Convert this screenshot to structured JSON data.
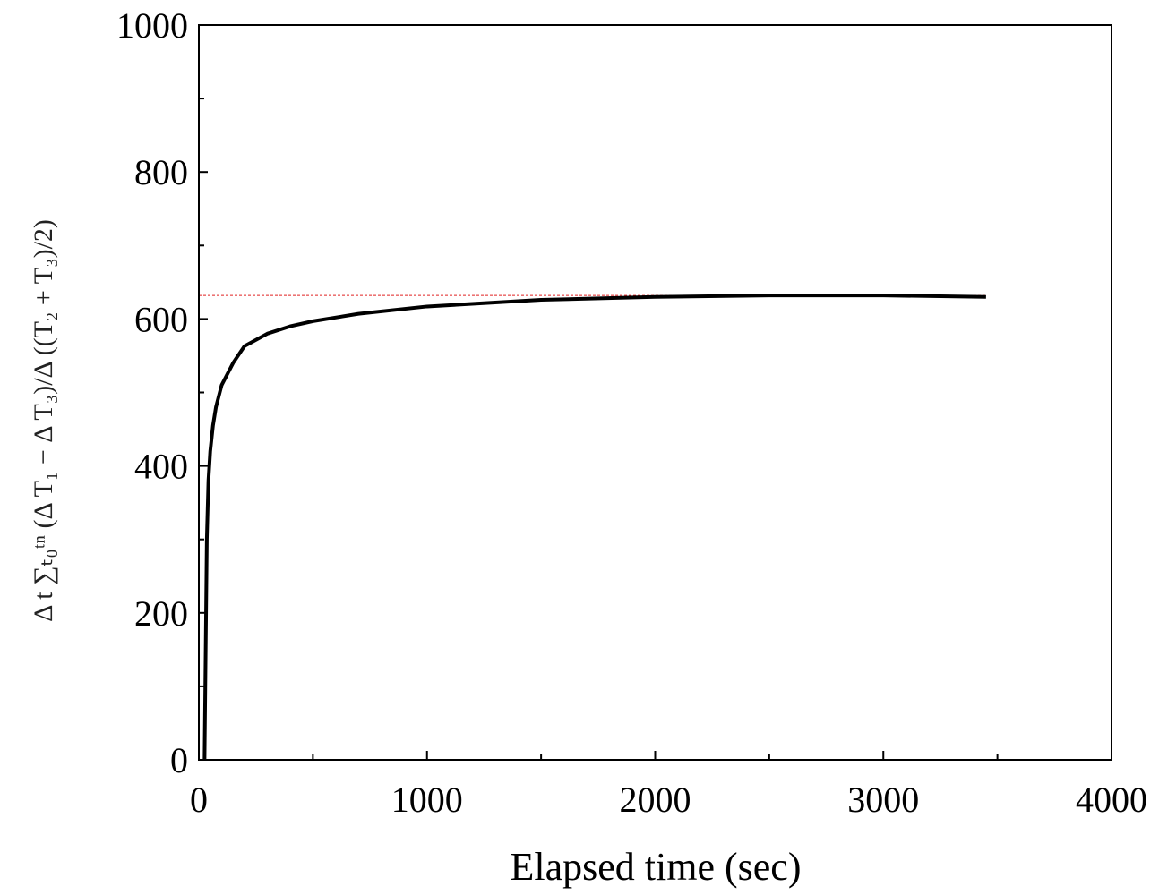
{
  "chart_data": {
    "type": "line",
    "x_label": "Elapsed time (sec)",
    "y_label": "Δ t ∑ₜ₀ᵗⁿ (Δ T₁ − Δ T₃)/Δ ((T₂ + T₃)/2)",
    "xlim": [
      0,
      4000
    ],
    "ylim": [
      0,
      1000
    ],
    "xticks": [
      0,
      1000,
      2000,
      3000,
      4000
    ],
    "yticks": [
      0,
      200,
      400,
      600,
      800,
      1000
    ],
    "xminorticks": [
      500,
      1500,
      2500,
      3500
    ],
    "yminorticks": [
      100,
      300,
      500,
      700,
      900
    ],
    "series": [
      {
        "color": "#000000",
        "x": [
          25,
          30,
          35,
          42,
          50,
          62,
          75,
          100,
          150,
          200,
          300,
          400,
          500,
          700,
          1000,
          1500,
          2000,
          2500,
          3000,
          3450
        ],
        "values": [
          0,
          150,
          300,
          380,
          420,
          455,
          480,
          510,
          540,
          563,
          580,
          590,
          597,
          607,
          617,
          626,
          630,
          632,
          632,
          630
        ]
      },
      {
        "color": "#e02020",
        "dashed": true,
        "x": [
          0,
          3450
        ],
        "values": [
          632,
          632
        ]
      }
    ]
  }
}
